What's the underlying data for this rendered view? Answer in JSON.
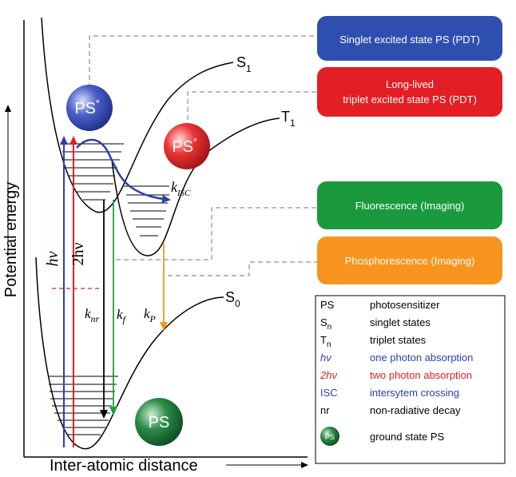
{
  "axes": {
    "y_label": "Potential energy",
    "x_label": "Inter-atomic distance"
  },
  "curves": {
    "s1": {
      "label": "S",
      "sub": "1"
    },
    "t1": {
      "label": "T",
      "sub": "1"
    },
    "s0": {
      "label": "S",
      "sub": "0"
    }
  },
  "spheres": {
    "ps_singlet": {
      "text": "PS",
      "sup": "*",
      "color": "#3a4eb0"
    },
    "ps_triplet": {
      "text": "PS",
      "sup": "*",
      "color": "#e02727"
    },
    "ps_ground": {
      "text": "PS",
      "color": "#1d7a3a"
    }
  },
  "transitions": {
    "hv": {
      "text": "hν",
      "color": "#2a3fb0"
    },
    "two_hv": {
      "text": "2hν",
      "color": "#e0201c"
    },
    "knr": {
      "text": "k",
      "sub": "nr",
      "color": "#000000"
    },
    "kf": {
      "text": "k",
      "sub": "f",
      "color": "#1aa03a"
    },
    "kp": {
      "text": "k",
      "sub": "P",
      "color": "#f39a1e"
    },
    "kisc": {
      "text": "k",
      "sub": "ISC",
      "color": "#2a3fb0"
    }
  },
  "boxes": {
    "singlet": {
      "line1": "Singlet excited state PS (PDT)",
      "color": "#2f4fb0"
    },
    "triplet": {
      "line1": "Long-lived",
      "line2": "triplet excited state PS (PDT)",
      "color": "#e31e24"
    },
    "fluorescence": {
      "line1": "Fluorescence (Imaging)",
      "color": "#1a9a3c"
    },
    "phosphorescence": {
      "line1": "Phosphorescence (Imaging)",
      "color": "#f7941d"
    }
  },
  "legend": {
    "items": [
      {
        "symbol": "PS",
        "desc": "photosensitizer",
        "color": "#000000"
      },
      {
        "symbol": "S",
        "sub": "n",
        "desc": "singlet states",
        "color": "#000000"
      },
      {
        "symbol": "T",
        "sub": "n",
        "desc": "triplet states",
        "color": "#000000"
      },
      {
        "symbol": "hν",
        "desc": "one photon absorption",
        "color": "#2a3fb0"
      },
      {
        "symbol": "2hν",
        "desc": "two photon absorption",
        "color": "#e0201c"
      },
      {
        "symbol": "ISC",
        "desc": "intersytem crossing",
        "color": "#2a3fb0"
      },
      {
        "symbol": "nr",
        "desc": "non-radiative decay",
        "color": "#000000"
      },
      {
        "symbol": "PS",
        "desc": "ground state PS",
        "color": "#000000",
        "sphere": true
      }
    ]
  }
}
